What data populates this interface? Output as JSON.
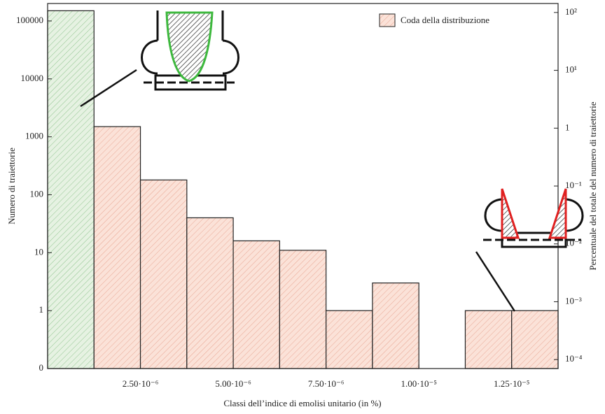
{
  "chart_data": {
    "type": "histogram",
    "y_scale": "log",
    "xlabel": "Classi dell’indice di emolisi unitario (in %)",
    "ylabel": "Numero di traiettorie",
    "y2label": "Percentuale del totale del numero di traiettorie",
    "bins": [
      0,
      1.25e-06,
      2.5e-06,
      3.75e-06,
      5e-06,
      6.25e-06,
      7.5e-06,
      8.75e-06,
      1e-05,
      1.125e-05,
      1.25e-05,
      1.375e-05
    ],
    "colors": [
      "#e6f2e2",
      "#fbe2d8",
      "#fbe2d8",
      "#fbe2d8",
      "#fbe2d8",
      "#fbe2d8",
      "#fbe2d8",
      "#fbe2d8",
      "#fbe2d8",
      "#fbe2d8",
      "#fbe2d8"
    ],
    "series": [
      {
        "name": "Coda della distribuzione",
        "color": "#fbe2d8",
        "values": [
          150000,
          1500,
          180,
          40,
          16,
          11,
          1,
          3,
          null,
          1,
          1
        ]
      }
    ],
    "xlim": [
      0,
      1.375e-05
    ],
    "xticks": [
      {
        "value": 2.5e-06,
        "label": "2.50·10⁻⁶"
      },
      {
        "value": 5e-06,
        "label": "5.00·10⁻⁶"
      },
      {
        "value": 7.5e-06,
        "label": "7.50·10⁻⁶"
      },
      {
        "value": 1e-05,
        "label": "1.00·10⁻⁵"
      },
      {
        "value": 1.25e-05,
        "label": "1.25·10⁻⁵"
      }
    ],
    "ylim": [
      0.1,
      200000
    ],
    "yticks": [
      {
        "value": 0.1,
        "label": "0"
      },
      1,
      10,
      100,
      1000,
      10000,
      100000
    ],
    "y2lim": [
      7e-05,
      143
    ],
    "y2ticks": [
      {
        "value": 0.0001,
        "label": "10⁻⁴"
      },
      {
        "value": 0.001,
        "label": "10⁻³"
      },
      {
        "value": 0.01,
        "label": "10⁻²"
      },
      {
        "value": 0.1,
        "label": "10⁻¹"
      },
      1,
      {
        "value": 10,
        "label": "10¹"
      },
      {
        "value": 100,
        "label": "10²"
      }
    ],
    "legend": "upper right"
  }
}
